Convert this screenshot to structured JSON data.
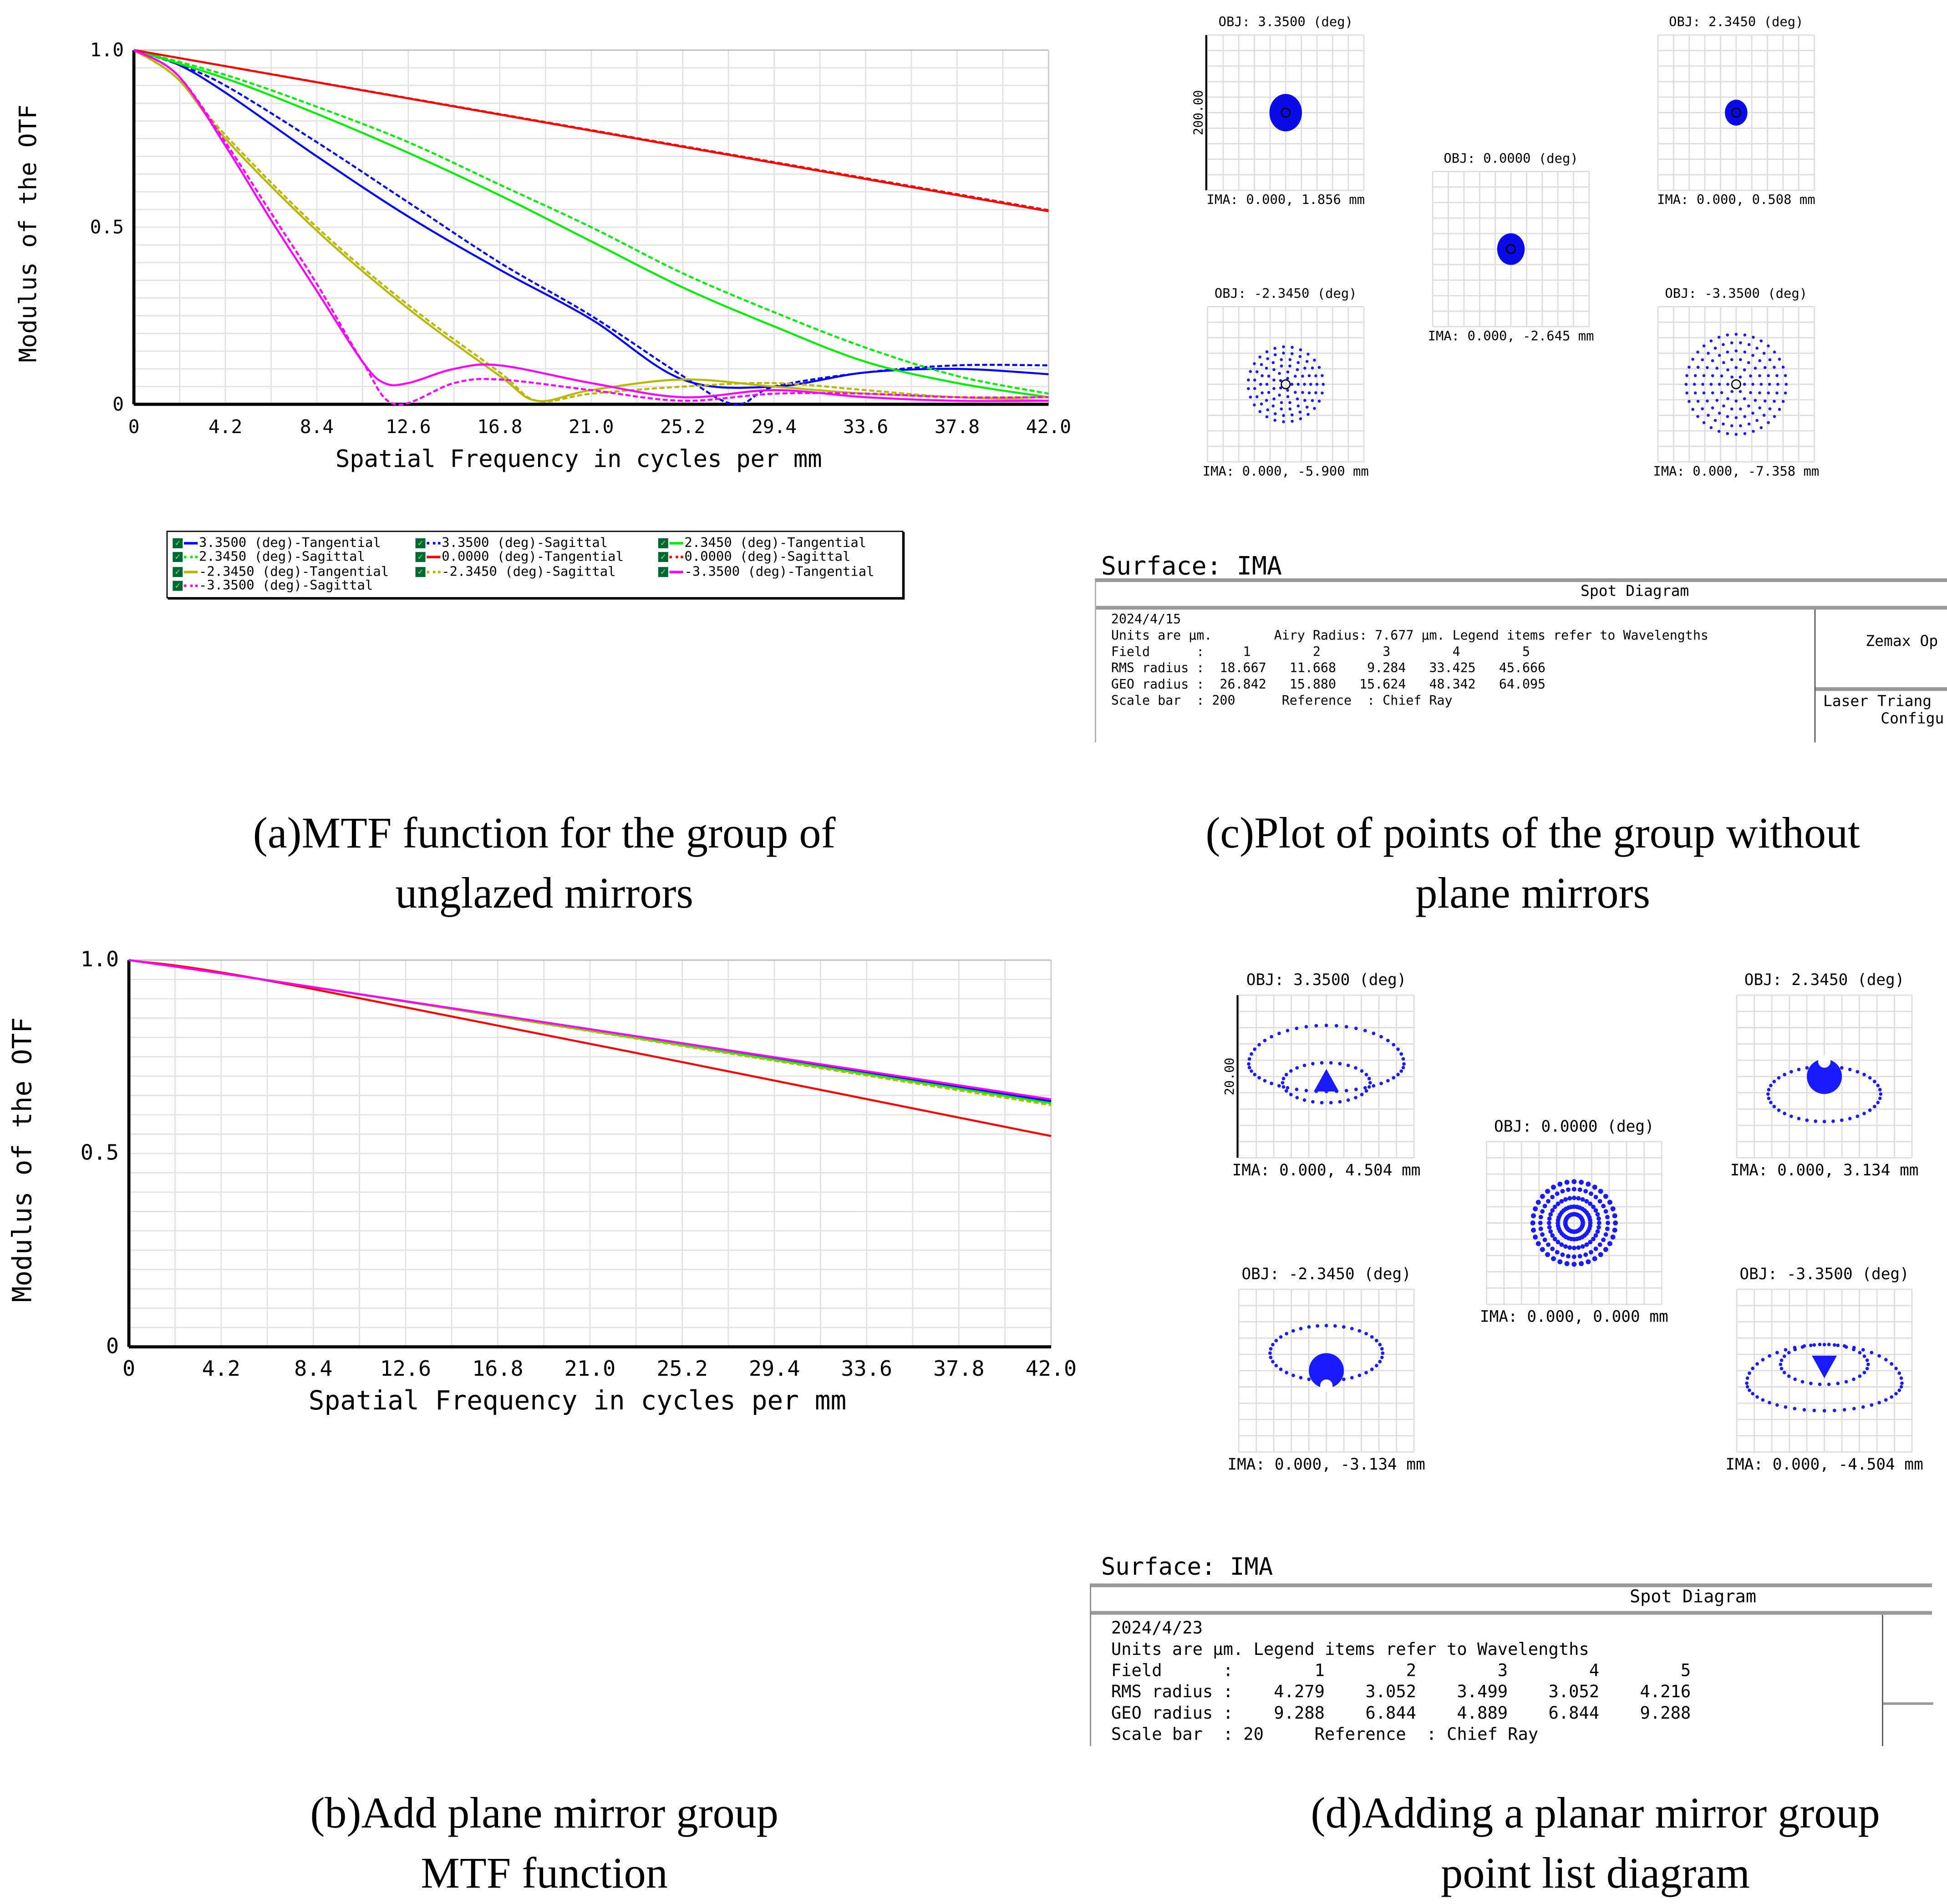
{
  "chart_data": [
    {
      "type": "line",
      "id": "a",
      "ylabel": "Modulus of the OTF",
      "xlabel": "Spatial Frequency in cycles per mm",
      "xlim": [
        0,
        42
      ],
      "ylim": [
        0,
        1
      ],
      "xticks": [
        "0",
        "4.2",
        "8.4",
        "12.6",
        "16.8",
        "21.0",
        "25.2",
        "29.4",
        "33.6",
        "37.8",
        "42.0"
      ],
      "yticks": [
        "0",
        "0.5",
        "1.0"
      ],
      "grid": true,
      "series": [
        {
          "name": "3.3500 (deg)-Tangential",
          "color": "#0000ff",
          "dash": false,
          "x": [
            0,
            2,
            4.2,
            8.4,
            12.6,
            16.8,
            21,
            25.2,
            29.4,
            33.6,
            37.8,
            42
          ],
          "y": [
            1,
            0.96,
            0.88,
            0.7,
            0.53,
            0.38,
            0.24,
            0.07,
            0.05,
            0.09,
            0.1,
            0.085
          ]
        },
        {
          "name": "3.3500 (deg)-Sagittal",
          "color": "#0000ff",
          "dash": true,
          "x": [
            0,
            2,
            4.2,
            8.4,
            12.6,
            16.8,
            21,
            25.2,
            27.6,
            29.4,
            33.6,
            37.8,
            42
          ],
          "y": [
            1,
            0.96,
            0.9,
            0.74,
            0.57,
            0.4,
            0.25,
            0.08,
            0.0,
            0.05,
            0.09,
            0.11,
            0.11
          ]
        },
        {
          "name": "2.3450 (deg)-Tangential",
          "color": "#00ee00",
          "dash": false,
          "x": [
            0,
            4.2,
            8.4,
            12.6,
            16.8,
            21,
            25.2,
            29.4,
            33.6,
            37.8,
            42
          ],
          "y": [
            1,
            0.92,
            0.82,
            0.71,
            0.59,
            0.46,
            0.33,
            0.22,
            0.12,
            0.06,
            0.02
          ]
        },
        {
          "name": "2.3450 (deg)-Sagittal",
          "color": "#00ee00",
          "dash": true,
          "x": [
            0,
            4.2,
            8.4,
            12.6,
            16.8,
            21,
            25.2,
            29.4,
            33.6,
            37.8,
            42
          ],
          "y": [
            1,
            0.93,
            0.84,
            0.74,
            0.62,
            0.5,
            0.37,
            0.26,
            0.16,
            0.08,
            0.03
          ]
        },
        {
          "name": "0.0000 (deg)-Tangential",
          "color": "#ff0000",
          "dash": false,
          "x": [
            0,
            42
          ],
          "y": [
            1,
            0.545
          ]
        },
        {
          "name": "0.0000 (deg)-Sagittal",
          "color": "#ff0000",
          "dash": true,
          "x": [
            0,
            42
          ],
          "y": [
            1,
            0.548
          ]
        },
        {
          "name": "-2.3450 (deg)-Tangential",
          "color": "#b8b800",
          "dash": false,
          "x": [
            0,
            2,
            4.2,
            8.4,
            12.6,
            16.8,
            18.5,
            21,
            25.2,
            29.4,
            33.6,
            37.8,
            42
          ],
          "y": [
            1,
            0.92,
            0.75,
            0.49,
            0.27,
            0.08,
            0.01,
            0.04,
            0.07,
            0.05,
            0.03,
            0.02,
            0.01
          ]
        },
        {
          "name": "-2.3450 (deg)-Sagittal",
          "color": "#b8b800",
          "dash": true,
          "x": [
            0,
            2,
            4.2,
            8.4,
            12.6,
            16.8,
            18.5,
            21,
            25.2,
            29.4,
            33.6,
            37.8,
            42
          ],
          "y": [
            1,
            0.92,
            0.76,
            0.5,
            0.28,
            0.09,
            0.01,
            0.03,
            0.05,
            0.06,
            0.04,
            0.02,
            0.02
          ]
        },
        {
          "name": "-3.3500 (deg)-Tangential",
          "color": "#ff00ff",
          "dash": false,
          "x": [
            0,
            2,
            4.2,
            6.3,
            8.4,
            10.5,
            11.5,
            12.6,
            14.7,
            16.8,
            21,
            25.2,
            29.4,
            33.6,
            37.8,
            42
          ],
          "y": [
            1,
            0.93,
            0.73,
            0.52,
            0.32,
            0.12,
            0.06,
            0.06,
            0.1,
            0.11,
            0.06,
            0.02,
            0.04,
            0.02,
            0.01,
            0.01
          ]
        },
        {
          "name": "-3.3500 (deg)-Sagittal",
          "color": "#ff00ff",
          "dash": true,
          "x": [
            0,
            2,
            4.2,
            6.3,
            8.4,
            10.5,
            12,
            14.7,
            16.8,
            21,
            25.2,
            29.4,
            33.6,
            37.8,
            42
          ],
          "y": [
            1,
            0.93,
            0.74,
            0.54,
            0.34,
            0.12,
            0.0,
            0.06,
            0.07,
            0.04,
            0.01,
            0.03,
            0.03,
            0.02,
            0.02
          ]
        }
      ]
    },
    {
      "type": "line",
      "id": "b",
      "ylabel": "Modulus of the OTF",
      "xlabel": "Spatial Frequency in cycles per mm",
      "xlim": [
        0,
        42
      ],
      "ylim": [
        0,
        1
      ],
      "xticks": [
        "0",
        "4.2",
        "8.4",
        "12.6",
        "16.8",
        "21.0",
        "25.2",
        "29.4",
        "33.6",
        "37.8",
        "42.0"
      ],
      "yticks": [
        "0",
        "0.5",
        "1.0"
      ],
      "grid": true,
      "series": [
        {
          "color": "#0000ff",
          "dash": false,
          "x": [
            0,
            8.4,
            42
          ],
          "y": [
            1,
            0.93,
            0.635
          ]
        },
        {
          "color": "#00ee00",
          "dash": false,
          "x": [
            0,
            8.4,
            42
          ],
          "y": [
            1,
            0.93,
            0.63
          ]
        },
        {
          "color": "#b8b800",
          "dash": true,
          "x": [
            0,
            8.4,
            42
          ],
          "y": [
            1,
            0.93,
            0.625
          ]
        },
        {
          "color": "#ff0000",
          "dash": false,
          "x": [
            0,
            8.4,
            42
          ],
          "y": [
            1,
            0.925,
            0.545
          ]
        },
        {
          "color": "#ff00ff",
          "dash": false,
          "x": [
            0,
            8.4,
            42
          ],
          "y": [
            1,
            0.93,
            0.64
          ]
        }
      ]
    }
  ],
  "spot_c": {
    "panels": [
      {
        "obj": "OBJ: 3.3500 (deg)",
        "ima": "IMA: 0.000, 1.856 mm",
        "shape": "blob",
        "size": 13,
        "scale": "200.00"
      },
      {
        "obj": "OBJ: 0.0000 (deg)",
        "ima": "IMA: 0.000, -2.645 mm",
        "shape": "blob",
        "size": 11
      },
      {
        "obj": "OBJ: 2.3450 (deg)",
        "ima": "IMA: 0.000, 0.508 mm",
        "shape": "blob",
        "size": 9
      },
      {
        "obj": "OBJ: -2.3450 (deg)",
        "ima": "IMA: 0.000, -5.900 mm",
        "shape": "rings",
        "size": 30
      },
      {
        "obj": "OBJ: -3.3500 (deg)",
        "ima": "IMA: 0.000, -7.358 mm",
        "shape": "rings",
        "size": 40
      }
    ],
    "surface": "Surface: IMA",
    "title": "Spot Diagram",
    "lines": [
      "2024/4/15",
      "Units are µm.        Airy Radius: 7.677 µm. Legend items refer to Wavelengths",
      "Field      :     1        2        3        4        5",
      "RMS radius :  18.667   11.668    9.284   33.425   45.666",
      "GEO radius :  26.842   15.880   15.624   48.342   64.095",
      "Scale bar  : 200      Reference  : Chief Ray"
    ],
    "side1": "Zemax Op",
    "side2": "Laser Triang",
    "side3": "Configu"
  },
  "spot_d": {
    "panels": [
      {
        "obj": "OBJ: 3.3500 (deg)",
        "ima": "IMA: 0.000, 4.504 mm",
        "shape": "kidney",
        "flip": false,
        "scale": "20.00"
      },
      {
        "obj": "OBJ: 0.0000 (deg)",
        "ima": "IMA: 0.000, 0.000 mm",
        "shape": "target"
      },
      {
        "obj": "OBJ: 2.3450 (deg)",
        "ima": "IMA: 0.000, 3.134 mm",
        "shape": "ellipse",
        "flip": false
      },
      {
        "obj": "OBJ: -2.3450 (deg)",
        "ima": "IMA: 0.000, -3.134 mm",
        "shape": "ellipse",
        "flip": true
      },
      {
        "obj": "OBJ: -3.3500 (deg)",
        "ima": "IMA: 0.000, -4.504 mm",
        "shape": "kidney",
        "flip": true
      }
    ],
    "surface": "Surface: IMA",
    "title": "Spot Diagram",
    "lines": [
      "2024/4/23",
      "Units are µm. Legend items refer to Wavelengths",
      "Field      :        1        2        3        4        5",
      "RMS radius :    4.279    3.052    3.499    3.052    4.216",
      "GEO radius :    9.288    6.844    4.889    6.844    9.288",
      "Scale bar  : 20     Reference  : Chief Ray"
    ]
  },
  "captions": {
    "a": [
      "(a)MTF function for the group of",
      "unglazed mirrors"
    ],
    "b": [
      "(b)Add plane mirror group",
      "MTF function"
    ],
    "c": [
      "(c)Plot of points of the group without",
      "plane mirrors"
    ],
    "d": [
      "(d)Adding a planar mirror group",
      "point list diagram"
    ]
  }
}
